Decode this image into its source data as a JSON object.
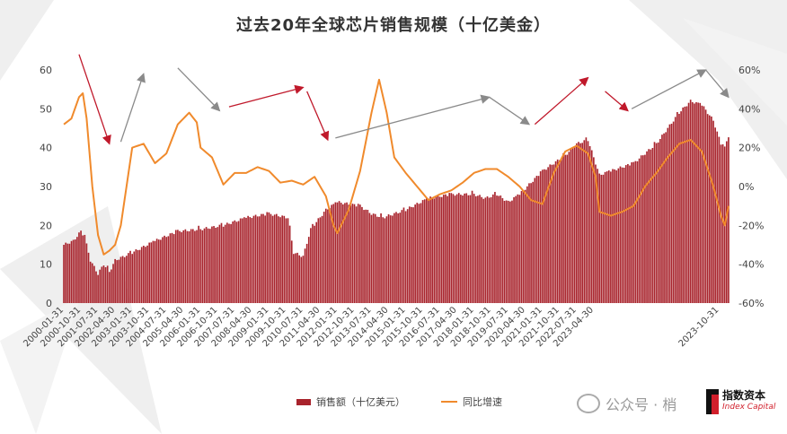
{
  "title": "过去20年全球芯片销售规模（十亿美金）",
  "legend": {
    "bar_label": "销售额（十亿美元）",
    "line_label": "同比增速"
  },
  "watermark": {
    "text": "公众号 · 梢",
    "logo_cn": "指数资本",
    "logo_en": "Index Capital"
  },
  "colors": {
    "bar": "#a8232c",
    "line": "#f08a2c",
    "arrow_red": "#c0192b",
    "arrow_gray": "#8a8a8a"
  },
  "chart_data": {
    "type": "bar",
    "title": "过去20年全球芯片销售规模（十亿美金）",
    "xlabel": "",
    "ylabel": "",
    "ylim": [
      0,
      60
    ],
    "y2lim": [
      -60,
      60
    ],
    "y_ticks": [
      "0",
      "10",
      "20",
      "30",
      "40",
      "50",
      "60"
    ],
    "y2_ticks": [
      "-60%",
      "-40%",
      "-20%",
      "0%",
      "20%",
      "40%",
      "60%"
    ],
    "x_tick_labels": [
      "2000-01-31",
      "2000-10-31",
      "2001-07-31",
      "2002-04-30",
      "2003-01-31",
      "2003-10-31",
      "2004-07-31",
      "2005-04-30",
      "2006-01-31",
      "2006-10-31",
      "2007-07-31",
      "2008-04-30",
      "2009-01-31",
      "2009-10-31",
      "2010-07-31",
      "2011-04-30",
      "2012-01-31",
      "2012-10-31",
      "2013-07-31",
      "2014-04-30",
      "2015-01-31",
      "2015-10-31",
      "2016-07-31",
      "2017-04-30",
      "2018-01-31",
      "2018-10-31",
      "2019-07-31",
      "2020-04-30",
      "2021-01-31",
      "2021-10-31",
      "2022-07-31",
      "2023-04-30",
      "2023-10-31"
    ],
    "grid": false,
    "legend_position": "bottom",
    "series": [
      {
        "name": "销售额（十亿美元）",
        "type": "bar",
        "axis": "left",
        "keyframes": [
          [
            0,
            15
          ],
          [
            5,
            16
          ],
          [
            9,
            18.5
          ],
          [
            11,
            17
          ],
          [
            14,
            11
          ],
          [
            18,
            7.5
          ],
          [
            21,
            10
          ],
          [
            24,
            8
          ],
          [
            27,
            11
          ],
          [
            36,
            13
          ],
          [
            48,
            16
          ],
          [
            60,
            18.5
          ],
          [
            72,
            19
          ],
          [
            84,
            20
          ],
          [
            96,
            22
          ],
          [
            108,
            23
          ],
          [
            118,
            22
          ],
          [
            121,
            13
          ],
          [
            126,
            12
          ],
          [
            130,
            19
          ],
          [
            138,
            24
          ],
          [
            144,
            26
          ],
          [
            156,
            25
          ],
          [
            162,
            23
          ],
          [
            168,
            22
          ],
          [
            180,
            24
          ],
          [
            192,
            27
          ],
          [
            204,
            28
          ],
          [
            216,
            28
          ],
          [
            222,
            27
          ],
          [
            228,
            28
          ],
          [
            234,
            26
          ],
          [
            240,
            28
          ],
          [
            252,
            34
          ],
          [
            264,
            38
          ],
          [
            270,
            41
          ],
          [
            276,
            42
          ],
          [
            282,
            33
          ],
          [
            288,
            34
          ],
          [
            300,
            36
          ],
          [
            312,
            41
          ],
          [
            324,
            49
          ],
          [
            330,
            52
          ],
          [
            336,
            51
          ],
          [
            342,
            47
          ],
          [
            346,
            41
          ],
          [
            348,
            40
          ],
          [
            350,
            43
          ]
        ]
      },
      {
        "name": "同比增速",
        "type": "line",
        "axis": "right",
        "keyframes": [
          [
            0,
            32
          ],
          [
            4,
            35
          ],
          [
            8,
            46
          ],
          [
            10,
            48
          ],
          [
            12,
            35
          ],
          [
            15,
            0
          ],
          [
            18,
            -25
          ],
          [
            21,
            -35
          ],
          [
            24,
            -33
          ],
          [
            27,
            -30
          ],
          [
            30,
            -20
          ],
          [
            36,
            20
          ],
          [
            42,
            22
          ],
          [
            48,
            12
          ],
          [
            54,
            17
          ],
          [
            60,
            32
          ],
          [
            66,
            38
          ],
          [
            70,
            33
          ],
          [
            72,
            20
          ],
          [
            78,
            15
          ],
          [
            84,
            1
          ],
          [
            90,
            7
          ],
          [
            96,
            7
          ],
          [
            102,
            10
          ],
          [
            108,
            8
          ],
          [
            114,
            2
          ],
          [
            120,
            3
          ],
          [
            126,
            1
          ],
          [
            132,
            5
          ],
          [
            138,
            -5
          ],
          [
            142,
            -20
          ],
          [
            144,
            -24
          ],
          [
            150,
            -12
          ],
          [
            156,
            8
          ],
          [
            162,
            38
          ],
          [
            166,
            55
          ],
          [
            170,
            38
          ],
          [
            174,
            15
          ],
          [
            180,
            7
          ],
          [
            186,
            0
          ],
          [
            192,
            -7
          ],
          [
            198,
            -4
          ],
          [
            204,
            -2
          ],
          [
            210,
            2
          ],
          [
            216,
            7
          ],
          [
            222,
            9
          ],
          [
            228,
            9
          ],
          [
            234,
            5
          ],
          [
            240,
            0
          ],
          [
            246,
            -7
          ],
          [
            252,
            -9
          ],
          [
            258,
            7
          ],
          [
            264,
            18
          ],
          [
            270,
            21
          ],
          [
            276,
            17
          ],
          [
            280,
            5
          ],
          [
            282,
            -13
          ],
          [
            288,
            -15
          ],
          [
            294,
            -13
          ],
          [
            300,
            -10
          ],
          [
            306,
            0
          ],
          [
            312,
            7
          ],
          [
            318,
            15
          ],
          [
            324,
            22
          ],
          [
            330,
            24
          ],
          [
            336,
            18
          ],
          [
            342,
            0
          ],
          [
            346,
            -15
          ],
          [
            348,
            -20
          ],
          [
            350,
            -10
          ]
        ]
      }
    ],
    "annotations": [
      {
        "type": "arrow",
        "color": "red",
        "from": [
          8,
          68
        ],
        "to": [
          24,
          22
        ]
      },
      {
        "type": "arrow",
        "color": "gray",
        "from": [
          30,
          23
        ],
        "to": [
          42,
          58
        ]
      },
      {
        "type": "arrow",
        "color": "gray",
        "from": [
          60,
          61
        ],
        "to": [
          82,
          39
        ]
      },
      {
        "type": "arrow",
        "color": "red",
        "from": [
          87,
          41
        ],
        "to": [
          126,
          51
        ]
      },
      {
        "type": "arrow",
        "color": "red",
        "from": [
          128,
          49
        ],
        "to": [
          139,
          24
        ]
      },
      {
        "type": "arrow",
        "color": "gray",
        "from": [
          143,
          25
        ],
        "to": [
          224,
          46
        ]
      },
      {
        "type": "arrow",
        "color": "gray",
        "from": [
          224,
          46
        ],
        "to": [
          245,
          32
        ]
      },
      {
        "type": "arrow",
        "color": "red",
        "from": [
          248,
          32
        ],
        "to": [
          276,
          56
        ]
      },
      {
        "type": "arrow",
        "color": "red",
        "from": [
          285,
          49
        ],
        "to": [
          297,
          39
        ]
      },
      {
        "type": "arrow",
        "color": "gray",
        "from": [
          299,
          40
        ],
        "to": [
          338,
          60
        ]
      },
      {
        "type": "arrow",
        "color": "gray",
        "from": [
          338,
          60
        ],
        "to": [
          350,
          46
        ]
      }
    ]
  }
}
